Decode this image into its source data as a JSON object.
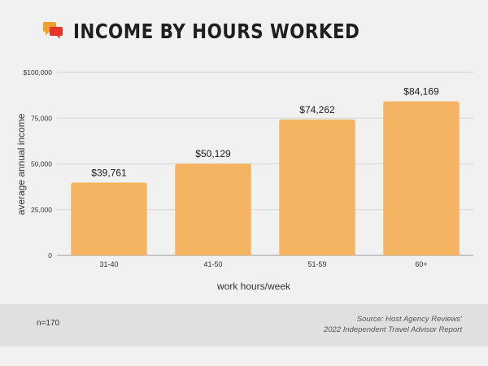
{
  "header": {
    "title": "INCOME BY HOURS WORKED",
    "logo_icon": "speech-bubbles-icon",
    "logo_colors": [
      "#f0a030",
      "#e8322b"
    ]
  },
  "chart_data": {
    "type": "bar",
    "title": "INCOME BY HOURS WORKED",
    "categories": [
      "31-40",
      "41-50",
      "51-59",
      "60+"
    ],
    "values": [
      39761,
      50129,
      74262,
      84169
    ],
    "data_labels": [
      "$39,761",
      "$50,129",
      "$74,262",
      "$84,169"
    ],
    "xlabel": "work hours/week",
    "ylabel": "average annual income",
    "ylim": [
      0,
      100000
    ],
    "yticks": [
      0,
      25000,
      50000,
      75000,
      100000
    ],
    "ytick_labels": [
      "0",
      "25,000",
      "50,000",
      "75,000",
      "$100,000"
    ],
    "bar_color": "#f4b462",
    "grid": true,
    "legend": "none"
  },
  "footer": {
    "n_label": "n=170",
    "source_line1": "Source: Host Agency Reviews'",
    "source_line2": "2022 Independent Travel Advisor Report"
  }
}
